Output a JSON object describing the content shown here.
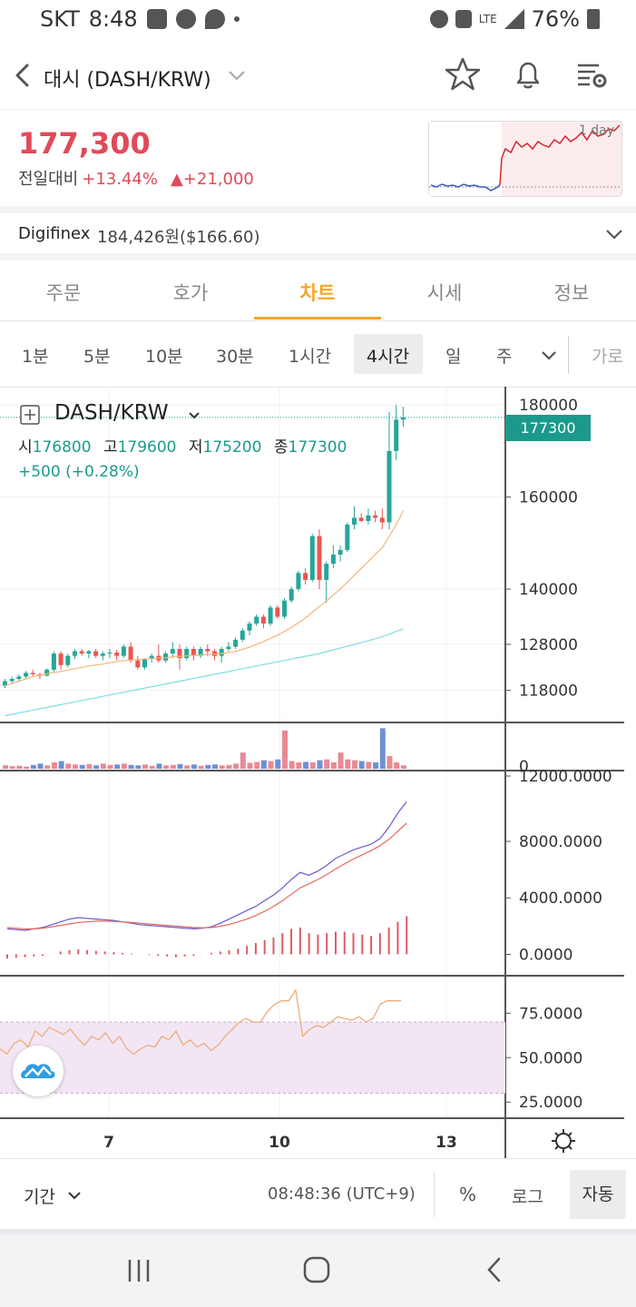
{
  "status_bar": {
    "carrier": "SKT",
    "time": "8:48",
    "battery": "76%",
    "signal_label": "LTE"
  },
  "header": {
    "title": "대시 (DASH/KRW)"
  },
  "price": {
    "current": "177,300",
    "change_label": "전일대비",
    "change_pct": "+13.44%",
    "change_abs": "▲+21,000",
    "mini_chart_label": "1 day"
  },
  "exchange": {
    "name": "Digifinex",
    "price": "184,426원($166.60)"
  },
  "tabs": [
    {
      "label": "주문"
    },
    {
      "label": "호가"
    },
    {
      "label": "차트"
    },
    {
      "label": "시세"
    },
    {
      "label": "정보"
    }
  ],
  "timeframes": [
    {
      "label": "1분"
    },
    {
      "label": "5분"
    },
    {
      "label": "10분"
    },
    {
      "label": "30분"
    },
    {
      "label": "1시간"
    },
    {
      "label": "4시간"
    },
    {
      "label": "일"
    },
    {
      "label": "주"
    }
  ],
  "timeframe_more": "가로",
  "chart": {
    "symbol": "DASH/KRW",
    "ohlc": {
      "o_label": "시",
      "o": "176800",
      "h_label": "고",
      "h": "179600",
      "l_label": "저",
      "l": "175200",
      "c_label": "종",
      "c": "177300"
    },
    "change": "+500 (+0.28%)",
    "last_price_tag": "177300",
    "price_axis": [
      "160000",
      "140000",
      "128000",
      "118000"
    ],
    "price_axis_top": "180000",
    "volume_axis": "0",
    "macd_axis": [
      "12000.0000",
      "8000.0000",
      "4000.0000",
      "0.0000"
    ],
    "rsi_axis": [
      "75.0000",
      "50.0000",
      "25.0000"
    ],
    "x_axis": [
      "7",
      "10",
      "13"
    ]
  },
  "chart_data": {
    "type": "candlestick",
    "candles": [
      [
        119000,
        120500,
        118500,
        120000
      ],
      [
        120000,
        121000,
        119500,
        120500
      ],
      [
        120500,
        121500,
        120000,
        121000
      ],
      [
        121000,
        122200,
        120500,
        121800
      ],
      [
        121800,
        122500,
        121000,
        121500
      ],
      [
        121500,
        121800,
        120500,
        121200
      ],
      [
        121200,
        122800,
        121000,
        122500
      ],
      [
        122500,
        126500,
        122000,
        126000
      ],
      [
        126000,
        126500,
        122500,
        123500
      ],
      [
        123500,
        126000,
        123000,
        125500
      ],
      [
        125500,
        127000,
        124800,
        126500
      ],
      [
        126500,
        127000,
        125500,
        126000
      ],
      [
        126000,
        126800,
        125000,
        126500
      ],
      [
        126500,
        127000,
        125000,
        125500
      ],
      [
        125500,
        126500,
        124500,
        126000
      ],
      [
        126000,
        127000,
        125000,
        126200
      ],
      [
        126200,
        126800,
        124500,
        125500
      ],
      [
        125500,
        128000,
        125000,
        127500
      ],
      [
        127500,
        128500,
        124000,
        124500
      ],
      [
        124500,
        125500,
        122500,
        123000
      ],
      [
        123000,
        125000,
        122500,
        124800
      ],
      [
        124800,
        126000,
        124000,
        125500
      ],
      [
        125500,
        128000,
        124000,
        124500
      ],
      [
        124500,
        126500,
        124000,
        126000
      ],
      [
        126000,
        128500,
        125000,
        127000
      ],
      [
        127000,
        128000,
        122500,
        125000
      ],
      [
        125000,
        127500,
        124500,
        127000
      ],
      [
        127000,
        127500,
        124500,
        125500
      ],
      [
        125500,
        127500,
        125000,
        127000
      ],
      [
        127000,
        128000,
        125500,
        126500
      ],
      [
        126500,
        127000,
        124500,
        125500
      ],
      [
        125500,
        127500,
        124000,
        127000
      ],
      [
        127000,
        128500,
        126500,
        127500
      ],
      [
        127500,
        129500,
        127000,
        129000
      ],
      [
        129000,
        131500,
        128500,
        131000
      ],
      [
        131000,
        133000,
        130000,
        132500
      ],
      [
        132500,
        134500,
        132000,
        134000
      ],
      [
        134000,
        134500,
        131500,
        132500
      ],
      [
        132500,
        136500,
        132000,
        136000
      ],
      [
        136000,
        136500,
        133500,
        134000
      ],
      [
        134000,
        138000,
        133500,
        137500
      ],
      [
        137500,
        140500,
        137000,
        140000
      ],
      [
        140000,
        144000,
        139500,
        143500
      ],
      [
        143500,
        144500,
        141000,
        142000
      ],
      [
        142000,
        152000,
        141500,
        151500
      ],
      [
        151500,
        153000,
        140000,
        142000
      ],
      [
        142000,
        146000,
        137000,
        145500
      ],
      [
        145500,
        149500,
        144500,
        147500
      ],
      [
        147500,
        149500,
        146000,
        148500
      ],
      [
        148500,
        154500,
        148000,
        154000
      ],
      [
        154000,
        158000,
        153000,
        155500
      ],
      [
        155500,
        156500,
        154500,
        154800
      ],
      [
        154800,
        157500,
        154000,
        156000
      ],
      [
        156000,
        157000,
        154500,
        155500
      ],
      [
        155500,
        157500,
        153000,
        154500
      ],
      [
        154500,
        178500,
        153000,
        170000
      ],
      [
        170000,
        180000,
        168000,
        176800
      ],
      [
        176800,
        179600,
        175200,
        177300
      ]
    ],
    "ma_fast": [
      119000,
      119500,
      120000,
      120500,
      121000,
      121300,
      121600,
      121900,
      122100,
      122400,
      122700,
      123000,
      123300,
      123500,
      123700,
      124000,
      124200,
      124500,
      124600,
      124700,
      124800,
      124900,
      125000,
      125100,
      125300,
      125400,
      125500,
      125600,
      125700,
      125800,
      125900,
      126000,
      126200,
      126500,
      126900,
      127400,
      128000,
      128600,
      129300,
      130000,
      130800,
      131700,
      132700,
      133700,
      135000,
      136200,
      137400,
      138700,
      140000,
      141500,
      143000,
      144500,
      146000,
      147500,
      149000,
      151500,
      154000,
      157000
    ],
    "ma_slow": [
      112500,
      112800,
      113100,
      113400,
      113700,
      114000,
      114300,
      114600,
      114900,
      115200,
      115500,
      115800,
      116100,
      116400,
      116700,
      117000,
      117300,
      117600,
      117900,
      118200,
      118500,
      118800,
      119100,
      119400,
      119700,
      120000,
      120300,
      120600,
      120900,
      121200,
      121500,
      121800,
      122100,
      122400,
      122700,
      123000,
      123300,
      123600,
      123900,
      124200,
      124500,
      124800,
      125100,
      125400,
      125700,
      126000,
      126400,
      126800,
      127200,
      127600,
      128000,
      128400,
      128800,
      129200,
      129700,
      130200,
      130800,
      131400
    ],
    "volumes": [
      0.08,
      0.06,
      0.07,
      0.05,
      0.09,
      0.12,
      0.08,
      0.15,
      0.18,
      0.12,
      0.1,
      0.09,
      0.11,
      0.08,
      0.12,
      0.09,
      0.1,
      0.12,
      0.09,
      0.08,
      0.1,
      0.07,
      0.12,
      0.08,
      0.09,
      0.11,
      0.08,
      0.1,
      0.07,
      0.09,
      0.1,
      0.08,
      0.09,
      0.12,
      0.38,
      0.14,
      0.16,
      0.2,
      0.18,
      0.22,
      0.9,
      0.18,
      0.15,
      0.16,
      0.15,
      0.2,
      0.22,
      0.15,
      0.38,
      0.22,
      0.2,
      0.18,
      0.16,
      0.15,
      0.95,
      0.3,
      0.15,
      0.08
    ],
    "macd_line": [
      1800,
      1750,
      1700,
      1800,
      1900,
      2100,
      2300,
      2500,
      2600,
      2550,
      2500,
      2450,
      2400,
      2300,
      2200,
      2100,
      2050,
      2000,
      1950,
      1900,
      1850,
      1800,
      1850,
      1950,
      2200,
      2500,
      2800,
      3100,
      3400,
      3800,
      4200,
      4700,
      5300,
      5800,
      5600,
      5900,
      6300,
      6800,
      7100,
      7400,
      7600,
      7800,
      8200,
      9000,
      10000,
      10800
    ],
    "signal_line": [
      1900,
      1850,
      1800,
      1800,
      1850,
      1950,
      2050,
      2150,
      2250,
      2300,
      2350,
      2350,
      2330,
      2300,
      2250,
      2200,
      2150,
      2100,
      2050,
      2000,
      1950,
      1900,
      1880,
      1900,
      1980,
      2120,
      2300,
      2500,
      2750,
      3050,
      3400,
      3800,
      4250,
      4700,
      5000,
      5300,
      5650,
      6050,
      6400,
      6750,
      7050,
      7350,
      7700,
      8150,
      8700,
      9300
    ],
    "histogram": [
      -300,
      -250,
      -200,
      -150,
      -100,
      0,
      200,
      300,
      350,
      300,
      250,
      200,
      150,
      100,
      50,
      0,
      -50,
      -100,
      -150,
      -200,
      -150,
      -100,
      0,
      100,
      200,
      300,
      400,
      600,
      800,
      1000,
      1200,
      1500,
      1800,
      1900,
      1500,
      1400,
      1500,
      1600,
      1600,
      1500,
      1400,
      1300,
      1500,
      1900,
      2300,
      2700
    ],
    "rsi": [
      55,
      52,
      58,
      60,
      56,
      65,
      62,
      67,
      65,
      63,
      66,
      61,
      57,
      62,
      60,
      64,
      58,
      62,
      55,
      52,
      55,
      57,
      56,
      62,
      60,
      65,
      57,
      60,
      56,
      58,
      54,
      57,
      62,
      66,
      70,
      72,
      70,
      70,
      76,
      80,
      82,
      82,
      88,
      62,
      66,
      68,
      67,
      70,
      73,
      72,
      71,
      73,
      70,
      72,
      80,
      82,
      82,
      82
    ],
    "price_range": [
      113000,
      182000
    ],
    "macd_range": [
      -1000,
      12500
    ],
    "rsi_range": [
      20,
      92
    ]
  },
  "bottom_bar": {
    "period_label": "기간",
    "clock": "08:48:36 (UTC+9)",
    "pct_label": "%",
    "log_label": "로그",
    "auto_label": "자동"
  }
}
